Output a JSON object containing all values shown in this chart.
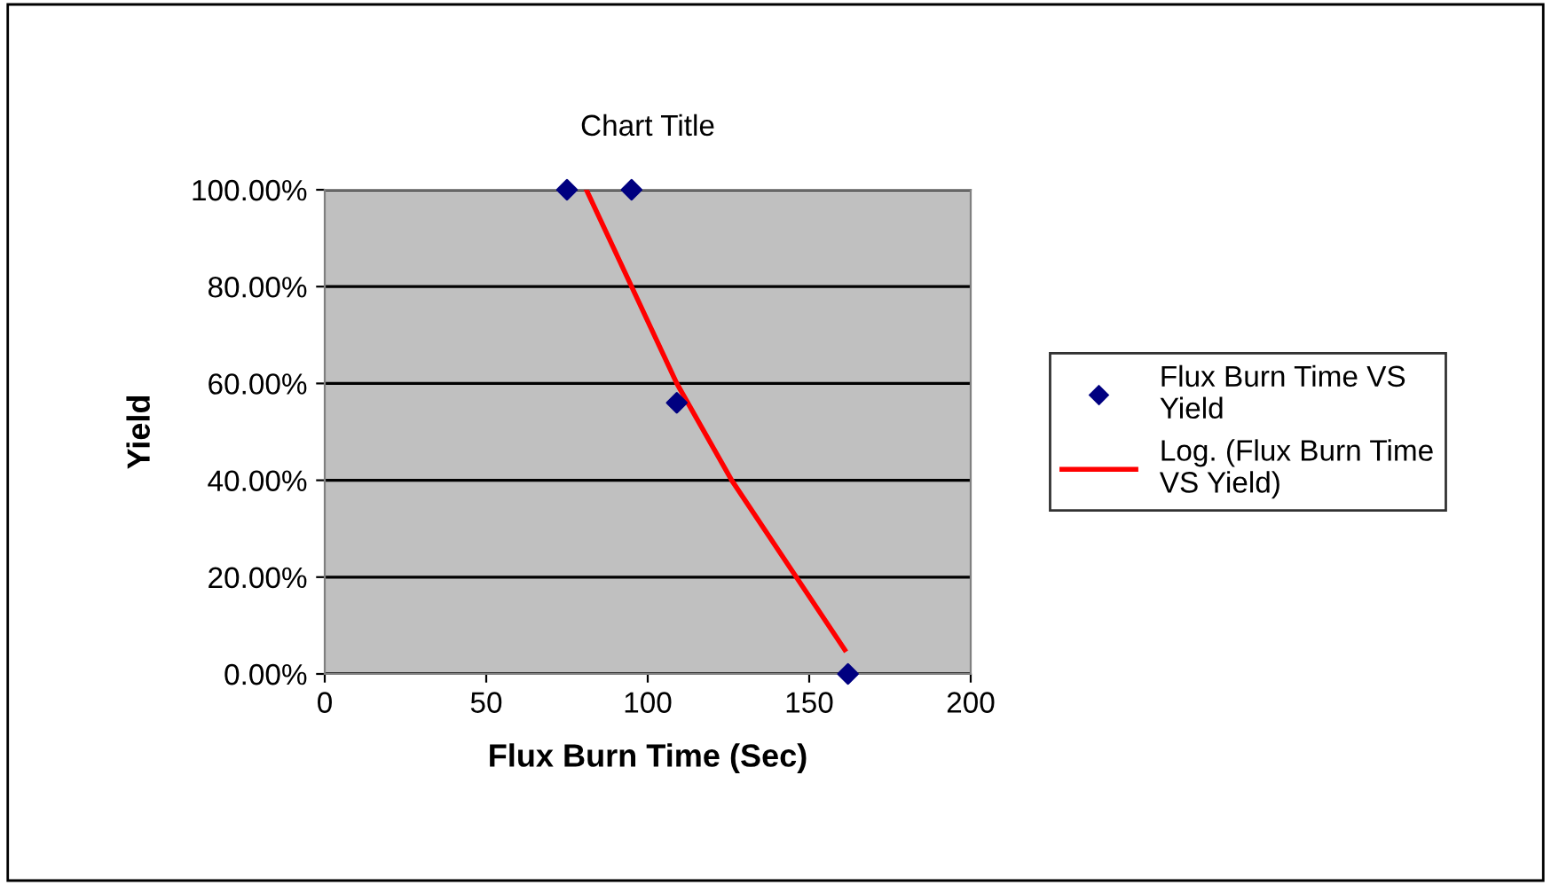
{
  "chart_data": {
    "type": "scatter",
    "title": "Chart Title",
    "xlabel": "Flux Burn Time (Sec)",
    "ylabel": "Yield",
    "series": [
      {
        "name": "Flux Burn Time VS Yield",
        "color": "#000080",
        "marker": "diamond",
        "x": [
          75,
          95,
          109,
          162
        ],
        "values": [
          100,
          100,
          56,
          0
        ]
      },
      {
        "name": "Log. (Flux Burn Time VS Yield)",
        "type": "line",
        "color": "#ff0000",
        "marker": "none",
        "x": [
          81,
          95,
          109,
          126,
          146,
          161
        ],
        "values": [
          100,
          80,
          60,
          40,
          20,
          5
        ]
      }
    ],
    "xlim": [
      0,
      200
    ],
    "xticks": [
      0,
      50,
      100,
      150,
      200
    ],
    "ylim": [
      0,
      100
    ],
    "yticks": [
      {
        "value": 0,
        "label": "0.00%"
      },
      {
        "value": 20,
        "label": "20.00%"
      },
      {
        "value": 40,
        "label": "40.00%"
      },
      {
        "value": 60,
        "label": "60.00%"
      },
      {
        "value": 80,
        "label": "80.00%"
      },
      {
        "value": 100,
        "label": "100.00%"
      }
    ],
    "grid": "y",
    "legend": "right"
  }
}
